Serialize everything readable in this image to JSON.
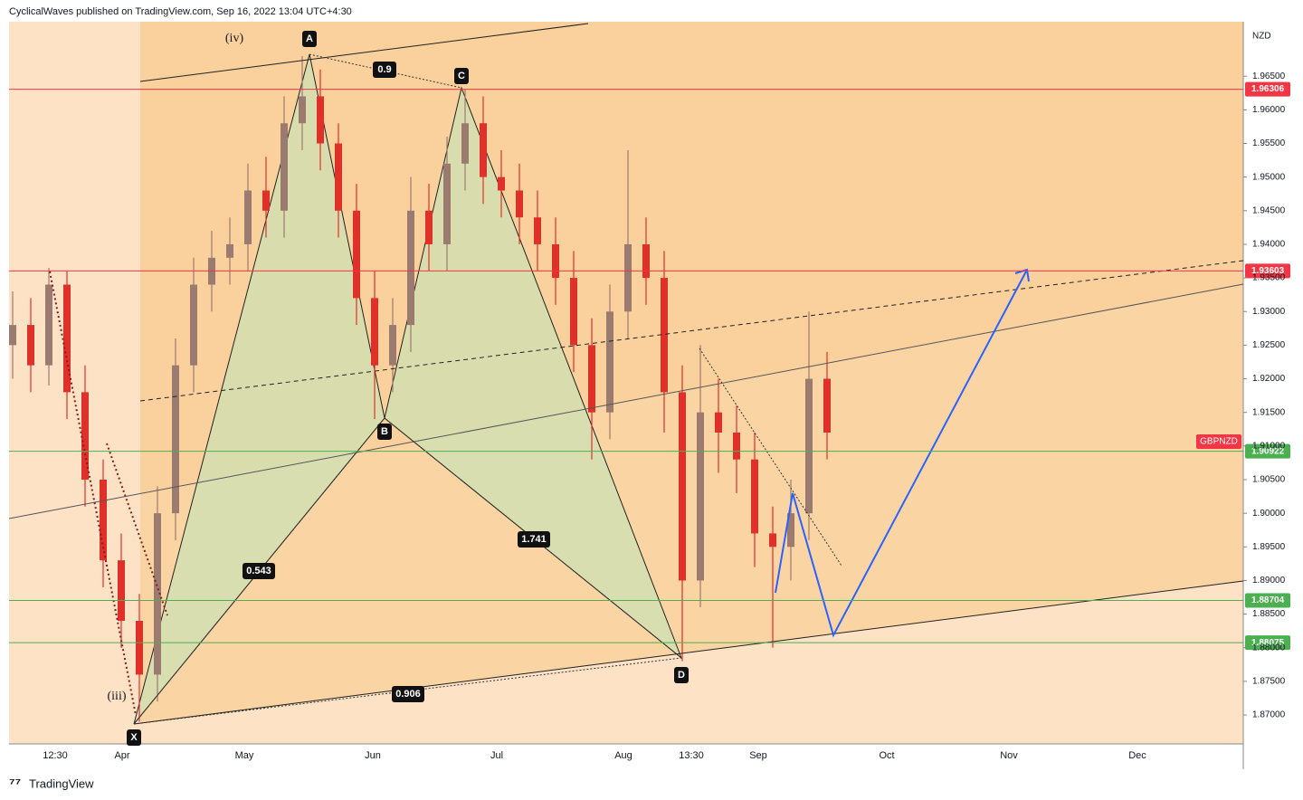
{
  "header": "CyclicalWaves published on TradingView.com, Sep 16, 2022 13:04 UTC+4:30",
  "footer": "TradingView",
  "chart_data": {
    "type": "candlestick",
    "currency": "NZD",
    "symbol": "GBPNZD",
    "up_color": "#9b7b70",
    "down_color": "#e0302a",
    "open": [
      1.925,
      1.928,
      1.922,
      1.934,
      1.918,
      1.905,
      1.893,
      1.884,
      1.876,
      1.9,
      1.922,
      1.934,
      1.938,
      1.94,
      1.948,
      1.945,
      1.958,
      1.962,
      1.955,
      1.945,
      1.932,
      1.922,
      1.928,
      1.945,
      1.94,
      1.952,
      1.958,
      1.95,
      1.948,
      1.944,
      1.94,
      1.935,
      1.925,
      1.915,
      1.93,
      1.94,
      1.935,
      1.918,
      1.89,
      1.915,
      1.912,
      1.908,
      1.897,
      1.895,
      1.9,
      1.92
    ],
    "high": [
      1.933,
      1.932,
      1.9365,
      1.936,
      1.922,
      1.908,
      1.897,
      1.888,
      1.904,
      1.926,
      1.938,
      1.942,
      1.944,
      1.952,
      1.953,
      1.962,
      1.968,
      1.966,
      1.958,
      1.949,
      1.936,
      1.932,
      1.95,
      1.949,
      1.956,
      1.963,
      1.962,
      1.954,
      1.952,
      1.948,
      1.944,
      1.939,
      1.929,
      1.934,
      1.954,
      1.944,
      1.939,
      1.922,
      1.925,
      1.92,
      1.916,
      1.912,
      1.901,
      1.905,
      1.93,
      1.924
    ],
    "low": [
      1.92,
      1.918,
      1.919,
      1.914,
      1.901,
      1.889,
      1.88,
      1.869,
      1.872,
      1.896,
      1.918,
      1.93,
      1.934,
      1.936,
      1.941,
      1.941,
      1.954,
      1.951,
      1.941,
      1.928,
      1.914,
      1.918,
      1.924,
      1.936,
      1.936,
      1.948,
      1.946,
      1.944,
      1.94,
      1.936,
      1.931,
      1.921,
      1.908,
      1.911,
      1.926,
      1.931,
      1.912,
      1.878,
      1.886,
      1.906,
      1.903,
      1.892,
      1.88,
      1.89,
      1.896,
      1.908
    ],
    "close": [
      1.928,
      1.922,
      1.934,
      1.918,
      1.905,
      1.893,
      1.884,
      1.876,
      1.9,
      1.922,
      1.934,
      1.938,
      1.94,
      1.948,
      1.945,
      1.958,
      1.962,
      1.955,
      1.945,
      1.932,
      1.922,
      1.928,
      1.945,
      1.94,
      1.952,
      1.958,
      1.95,
      1.948,
      1.944,
      1.94,
      1.935,
      1.925,
      1.915,
      1.93,
      1.94,
      1.935,
      1.918,
      1.89,
      1.915,
      1.912,
      1.908,
      1.897,
      1.895,
      1.9,
      1.92,
      1.912
    ],
    "ylim": [
      1.8657,
      1.9731
    ],
    "yticks": [
      {
        "value": 1.87,
        "label": "1.87000"
      },
      {
        "value": 1.875,
        "label": "1.87500"
      },
      {
        "value": 1.88,
        "label": "1.88000"
      },
      {
        "value": 1.885,
        "label": "1.88500"
      },
      {
        "value": 1.89,
        "label": "1.89000"
      },
      {
        "value": 1.895,
        "label": "1.89500"
      },
      {
        "value": 1.9,
        "label": "1.90000"
      },
      {
        "value": 1.905,
        "label": "1.90500"
      },
      {
        "value": 1.91,
        "label": "1.91000"
      },
      {
        "value": 1.915,
        "label": "1.91500"
      },
      {
        "value": 1.92,
        "label": "1.92000"
      },
      {
        "value": 1.925,
        "label": "1.92500"
      },
      {
        "value": 1.93,
        "label": "1.93000"
      },
      {
        "value": 1.935,
        "label": "1.93500"
      },
      {
        "value": 1.94,
        "label": "1.94000"
      },
      {
        "value": 1.945,
        "label": "1.94500"
      },
      {
        "value": 1.95,
        "label": "1.95000"
      },
      {
        "value": 1.955,
        "label": "1.95500"
      },
      {
        "value": 1.96,
        "label": "1.96000"
      },
      {
        "value": 1.965,
        "label": "1.96500"
      }
    ],
    "x_labels": [
      "12:30",
      "Apr",
      "May",
      "Jun",
      "Jul",
      "Aug",
      "13:30",
      "Sep",
      "Oct",
      "Nov",
      "Dec"
    ],
    "levels": [
      {
        "value": 1.96306,
        "label": "1.96306",
        "color": "#f23645"
      },
      {
        "value": 1.93603,
        "label": "1.93603",
        "color": "#f23645"
      },
      {
        "value": 1.90922,
        "label": "1.90922",
        "color": "#4caf50"
      },
      {
        "value": 1.88704,
        "label": "1.88704",
        "color": "#4caf50"
      },
      {
        "value": 1.88075,
        "label": "1.88075",
        "color": "#4caf50"
      }
    ],
    "pattern_labels": [
      "X",
      "A",
      "B",
      "C",
      "D"
    ],
    "ratios": [
      "0.9",
      "0.543",
      "1.741",
      "0.906"
    ],
    "wave_labels": [
      "(iv)",
      "(iii)"
    ]
  }
}
